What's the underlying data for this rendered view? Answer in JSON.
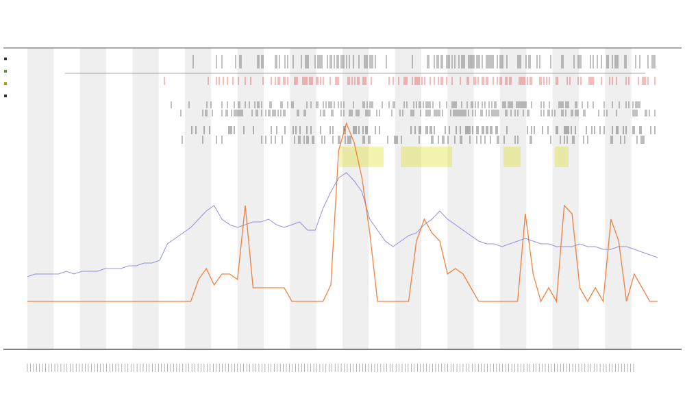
{
  "chart_data": {
    "type": "line",
    "title": "",
    "subtitles": [
      "",
      ""
    ],
    "xlabel": "",
    "ylabel": "",
    "legend_position": "left",
    "grid": false,
    "alternating_bands": true,
    "band_count": 24,
    "band_color": "#efefef",
    "legend": [
      {
        "label": "",
        "color": "#333333"
      },
      {
        "label": "",
        "color": "#6b8e3a"
      },
      {
        "label": "",
        "color": "#b8a000"
      },
      {
        "label": "",
        "color": "#333333"
      }
    ],
    "series": [
      {
        "color": "#7c7ce0",
        "values": [
          0.09,
          0.1,
          0.1,
          0.1,
          0.1,
          0.11,
          0.1,
          0.11,
          0.11,
          0.11,
          0.12,
          0.12,
          0.12,
          0.13,
          0.13,
          0.14,
          0.14,
          0.15,
          0.21,
          0.23,
          0.25,
          0.27,
          0.3,
          0.33,
          0.35,
          0.3,
          0.28,
          0.27,
          0.28,
          0.29,
          0.29,
          0.3,
          0.28,
          0.27,
          0.28,
          0.29,
          0.26,
          0.26,
          0.34,
          0.4,
          0.45,
          0.47,
          0.44,
          0.4,
          0.3,
          0.26,
          0.22,
          0.2,
          0.22,
          0.24,
          0.25,
          0.28,
          0.3,
          0.33,
          0.3,
          0.28,
          0.26,
          0.24,
          0.22,
          0.21,
          0.21,
          0.2,
          0.21,
          0.22,
          0.23,
          0.22,
          0.21,
          0.21,
          0.2,
          0.2,
          0.2,
          0.21,
          0.2,
          0.2,
          0.19,
          0.19,
          0.2,
          0.2,
          0.19,
          0.18,
          0.17,
          0.16
        ]
      },
      {
        "color": "#f06a1f",
        "values": [
          0,
          0,
          0,
          0,
          0,
          0,
          0,
          0,
          0,
          0,
          0,
          0,
          0,
          0,
          0,
          0,
          0,
          0,
          0,
          0,
          0,
          0,
          0.08,
          0.12,
          0.06,
          0.1,
          0.1,
          0.08,
          0.35,
          0.05,
          0.05,
          0.05,
          0.05,
          0.05,
          0,
          0,
          0,
          0,
          0,
          0.06,
          0.55,
          0.65,
          0.58,
          0.45,
          0.25,
          0,
          0,
          0,
          0,
          0,
          0.22,
          0.3,
          0.25,
          0.22,
          0.1,
          0.12,
          0.1,
          0.05,
          0,
          0,
          0,
          0,
          0,
          0,
          0.32,
          0.1,
          0,
          0.05,
          0,
          0.35,
          0.32,
          0.05,
          0,
          0.05,
          0,
          0.3,
          0.22,
          0,
          0.1,
          0.05,
          0,
          0
        ]
      }
    ],
    "event_markers": {
      "rows": 6,
      "colors": [
        "#333333",
        "#e02020",
        "#333333",
        "#333333",
        "#111111",
        "#222222"
      ]
    },
    "annotation_band": {
      "color": "#e0e020"
    },
    "x_tick_labels_count": 200,
    "x_tick_labels": []
  }
}
